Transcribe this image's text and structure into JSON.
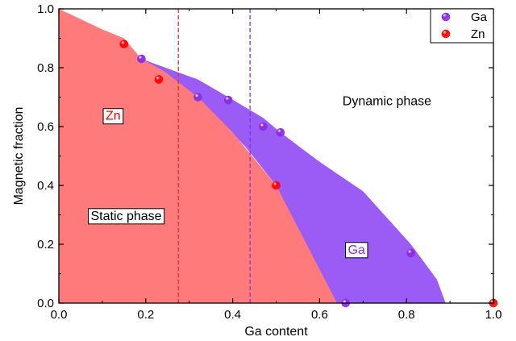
{
  "chart_data": {
    "type": "area",
    "xlabel": "Ga content",
    "ylabel": "Magnetic fraction",
    "xlim": [
      0.0,
      1.0
    ],
    "ylim": [
      0.0,
      1.0
    ],
    "x_ticks": [
      "0.0",
      "0.2",
      "0.4",
      "0.6",
      "0.8",
      "1.0"
    ],
    "y_ticks": [
      "0.0",
      "0.2",
      "0.4",
      "0.6",
      "0.8",
      "1.0"
    ],
    "grid": false,
    "legend_position": "top-right",
    "regions": [
      {
        "name": "Ga",
        "color": "#9b5cf6",
        "boundary": [
          [
            0.19,
            0.83
          ],
          [
            0.32,
            0.76
          ],
          [
            0.39,
            0.7
          ],
          [
            0.47,
            0.63
          ],
          [
            0.51,
            0.58
          ],
          [
            0.6,
            0.48
          ],
          [
            0.7,
            0.38
          ],
          [
            0.81,
            0.2
          ],
          [
            0.87,
            0.08
          ],
          [
            0.89,
            0.0
          ],
          [
            0.64,
            0.0
          ],
          [
            0.56,
            0.2
          ],
          [
            0.5,
            0.4
          ],
          [
            0.43,
            0.53
          ],
          [
            0.32,
            0.7
          ],
          [
            0.19,
            0.83
          ]
        ]
      },
      {
        "name": "Zn",
        "color": "#ff7b7b",
        "boundary": [
          [
            0.0,
            1.0
          ],
          [
            0.1,
            0.93
          ],
          [
            0.15,
            0.9
          ],
          [
            0.19,
            0.83
          ],
          [
            0.24,
            0.79
          ],
          [
            0.32,
            0.7
          ],
          [
            0.4,
            0.58
          ],
          [
            0.5,
            0.4
          ],
          [
            0.57,
            0.2
          ],
          [
            0.64,
            0.0
          ],
          [
            0.0,
            0.0
          ]
        ]
      }
    ],
    "series": [
      {
        "name": "Ga",
        "color": "#8b2be2",
        "points": [
          [
            0.19,
            0.83
          ],
          [
            0.32,
            0.7
          ],
          [
            0.39,
            0.69
          ],
          [
            0.47,
            0.6
          ],
          [
            0.51,
            0.58
          ],
          [
            0.81,
            0.17
          ],
          [
            0.66,
            0.0
          ]
        ]
      },
      {
        "name": "Zn",
        "color": "#ff0000",
        "points": [
          [
            0.15,
            0.88
          ],
          [
            0.23,
            0.76
          ],
          [
            0.5,
            0.4
          ],
          [
            1.0,
            0.0
          ]
        ]
      }
    ],
    "vertical_lines": [
      {
        "x": 0.275,
        "color": "#e03030"
      },
      {
        "x": 0.44,
        "color": "#8b2be2"
      }
    ],
    "annotations": [
      {
        "text": "Zn",
        "x": 0.125,
        "y": 0.635,
        "color": "#ff0000",
        "boxed": true
      },
      {
        "text": "Static phase",
        "x": 0.155,
        "y": 0.295,
        "color": "#000000",
        "boxed": true
      },
      {
        "text": "Ga",
        "x": 0.685,
        "y": 0.18,
        "color": "#8b2be2",
        "boxed": true
      },
      {
        "text": "Dynamic phase",
        "x": 0.755,
        "y": 0.685,
        "color": "#000000",
        "boxed": false
      }
    ]
  }
}
